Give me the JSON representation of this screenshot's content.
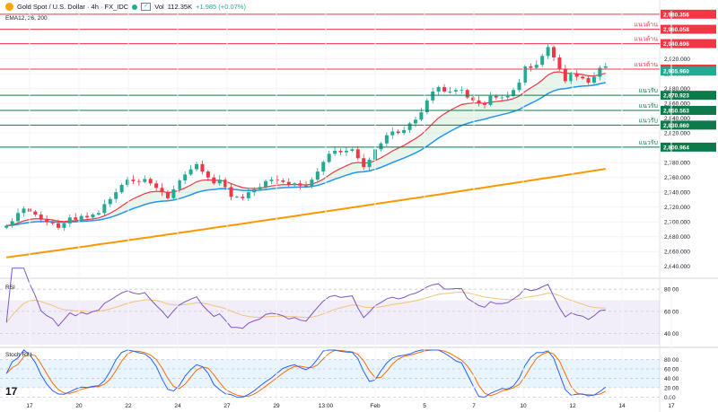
{
  "header": {
    "symbol": "Gold Spot / U.S. Dollar · 4h · FX_IDC",
    "volume_label": "Vol",
    "volume_value": "112.35K",
    "change": "+1.985 (+0.07%)",
    "ema_label": "EMA12, 26, 200"
  },
  "colors": {
    "up": "#22ab94",
    "down": "#f23645",
    "ema12": "#f23645",
    "ema26": "#2196f3",
    "ema200": "#ff9800",
    "rsi": "#7e57c2",
    "rsi_ma": "#f5c17a",
    "stoch_k": "#2962ff",
    "stoch_d": "#ff6d00",
    "level": "#0c7a4b"
  },
  "chart_data": [
    {
      "type": "candlestick",
      "ylim": [
        2630,
        2985
      ],
      "y_ticks": [
        "2,640.000",
        "2,660.000",
        "2,680.000",
        "2,700.000",
        "2,720.000",
        "2,740.000",
        "2,760.000",
        "2,780.000",
        "2,800.000",
        "2,820.000",
        "2,840.000",
        "2,860.000",
        "2,880.000",
        "2,900.000",
        "2,920.000",
        "2,940.000",
        "2,960.000",
        "2,980.000"
      ],
      "x_labels": [
        "17",
        "20",
        "22",
        "24",
        "27",
        "29",
        "13:00",
        "Feb",
        "5",
        "7",
        "10",
        "12",
        "14",
        "17"
      ],
      "close": [
        2695,
        2701,
        2712,
        2718,
        2714,
        2710,
        2703,
        2700,
        2698,
        2692,
        2698,
        2706,
        2703,
        2708,
        2706,
        2710,
        2712,
        2724,
        2731,
        2740,
        2750,
        2757,
        2755,
        2754,
        2758,
        2752,
        2746,
        2740,
        2732,
        2744,
        2756,
        2764,
        2771,
        2778,
        2768,
        2760,
        2752,
        2757,
        2747,
        2734,
        2734,
        2732,
        2740,
        2744,
        2747,
        2755,
        2757,
        2756,
        2754,
        2750,
        2752,
        2749,
        2748,
        2757,
        2768,
        2781,
        2792,
        2796,
        2794,
        2796,
        2798,
        2786,
        2774,
        2784,
        2798,
        2806,
        2817,
        2822,
        2820,
        2824,
        2833,
        2838,
        2848,
        2864,
        2876,
        2882,
        2876,
        2876,
        2878,
        2878,
        2868,
        2864,
        2860,
        2858,
        2870,
        2868,
        2868,
        2870,
        2878,
        2888,
        2910,
        2908,
        2912,
        2924,
        2936,
        2922,
        2906,
        2890,
        2900,
        2896,
        2894,
        2888,
        2896,
        2908,
        2910
      ],
      "levels": [
        {
          "value": 2980.356,
          "label": "2,980.356",
          "tag": ""
        },
        {
          "value": 2960.058,
          "label": "2,960.058",
          "tag": "แนวต้าน"
        },
        {
          "value": 2940.696,
          "label": "2,940.696",
          "tag": "แนวต้าน"
        },
        {
          "value": 2906.28,
          "label": "2,906.280",
          "tag": "แนวต้าน"
        },
        {
          "value": 2870.923,
          "label": "2,870.923",
          "tag": "แนวรับ"
        },
        {
          "value": 2850.563,
          "label": "2,850.563",
          "tag": "แนวรับ"
        },
        {
          "value": 2830.66,
          "label": "2,830.660",
          "tag": "แนวรับ"
        },
        {
          "value": 2800.964,
          "label": "2,800.964",
          "tag": "แนวรับ"
        }
      ],
      "current_price": {
        "value": 2905.96,
        "label": "2,905.960"
      }
    },
    {
      "type": "line",
      "title": "RSI",
      "ylim": [
        30,
        85
      ],
      "y_ticks": [
        "80.00",
        "60.00",
        "40.00"
      ],
      "band": [
        30,
        70
      ]
    },
    {
      "type": "line",
      "title": "Stoch RSI",
      "ylim": [
        -5,
        100
      ],
      "y_ticks": [
        "80.00",
        "60.00",
        "40.00",
        "20.00",
        "0.00"
      ],
      "band": [
        20,
        80
      ]
    }
  ],
  "logo": "17"
}
